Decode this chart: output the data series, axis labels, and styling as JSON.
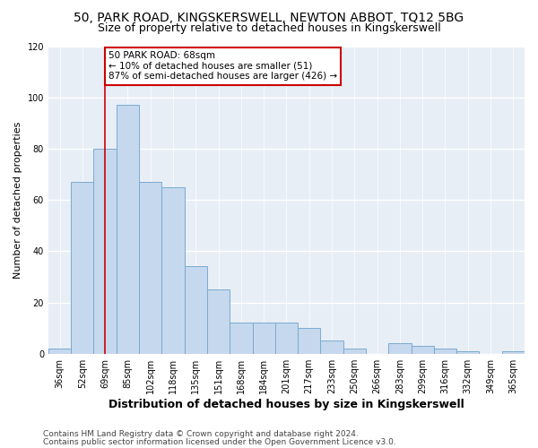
{
  "title1": "50, PARK ROAD, KINGSKERSWELL, NEWTON ABBOT, TQ12 5BG",
  "title2": "Size of property relative to detached houses in Kingskerswell",
  "xlabel": "Distribution of detached houses by size in Kingskerswell",
  "ylabel": "Number of detached properties",
  "categories": [
    "36sqm",
    "52sqm",
    "69sqm",
    "85sqm",
    "102sqm",
    "118sqm",
    "135sqm",
    "151sqm",
    "168sqm",
    "184sqm",
    "201sqm",
    "217sqm",
    "233sqm",
    "250sqm",
    "266sqm",
    "283sqm",
    "299sqm",
    "316sqm",
    "332sqm",
    "349sqm",
    "365sqm"
  ],
  "values": [
    2,
    67,
    80,
    97,
    67,
    65,
    34,
    25,
    12,
    12,
    12,
    10,
    5,
    2,
    0,
    4,
    3,
    2,
    1,
    0,
    1
  ],
  "bar_color": "#c5d8ed",
  "bar_edgecolor": "#7aabd0",
  "vline_x_idx": 2,
  "vline_color": "#cc0000",
  "annotation_text": "50 PARK ROAD: 68sqm\n← 10% of detached houses are smaller (51)\n87% of semi-detached houses are larger (426) →",
  "annotation_box_color": "#ffffff",
  "annotation_box_edge": "#cc0000",
  "footer1": "Contains HM Land Registry data © Crown copyright and database right 2024.",
  "footer2": "Contains public sector information licensed under the Open Government Licence v3.0.",
  "ylim": [
    0,
    120
  ],
  "yticks": [
    0,
    20,
    40,
    60,
    80,
    100,
    120
  ],
  "fig_bg_color": "#ffffff",
  "plot_bg_color": "#e8eef6",
  "grid_color": "#ffffff",
  "title1_fontsize": 10,
  "title2_fontsize": 9,
  "xlabel_fontsize": 9,
  "ylabel_fontsize": 8,
  "tick_fontsize": 7,
  "annotation_fontsize": 7.5,
  "footer_fontsize": 6.5
}
